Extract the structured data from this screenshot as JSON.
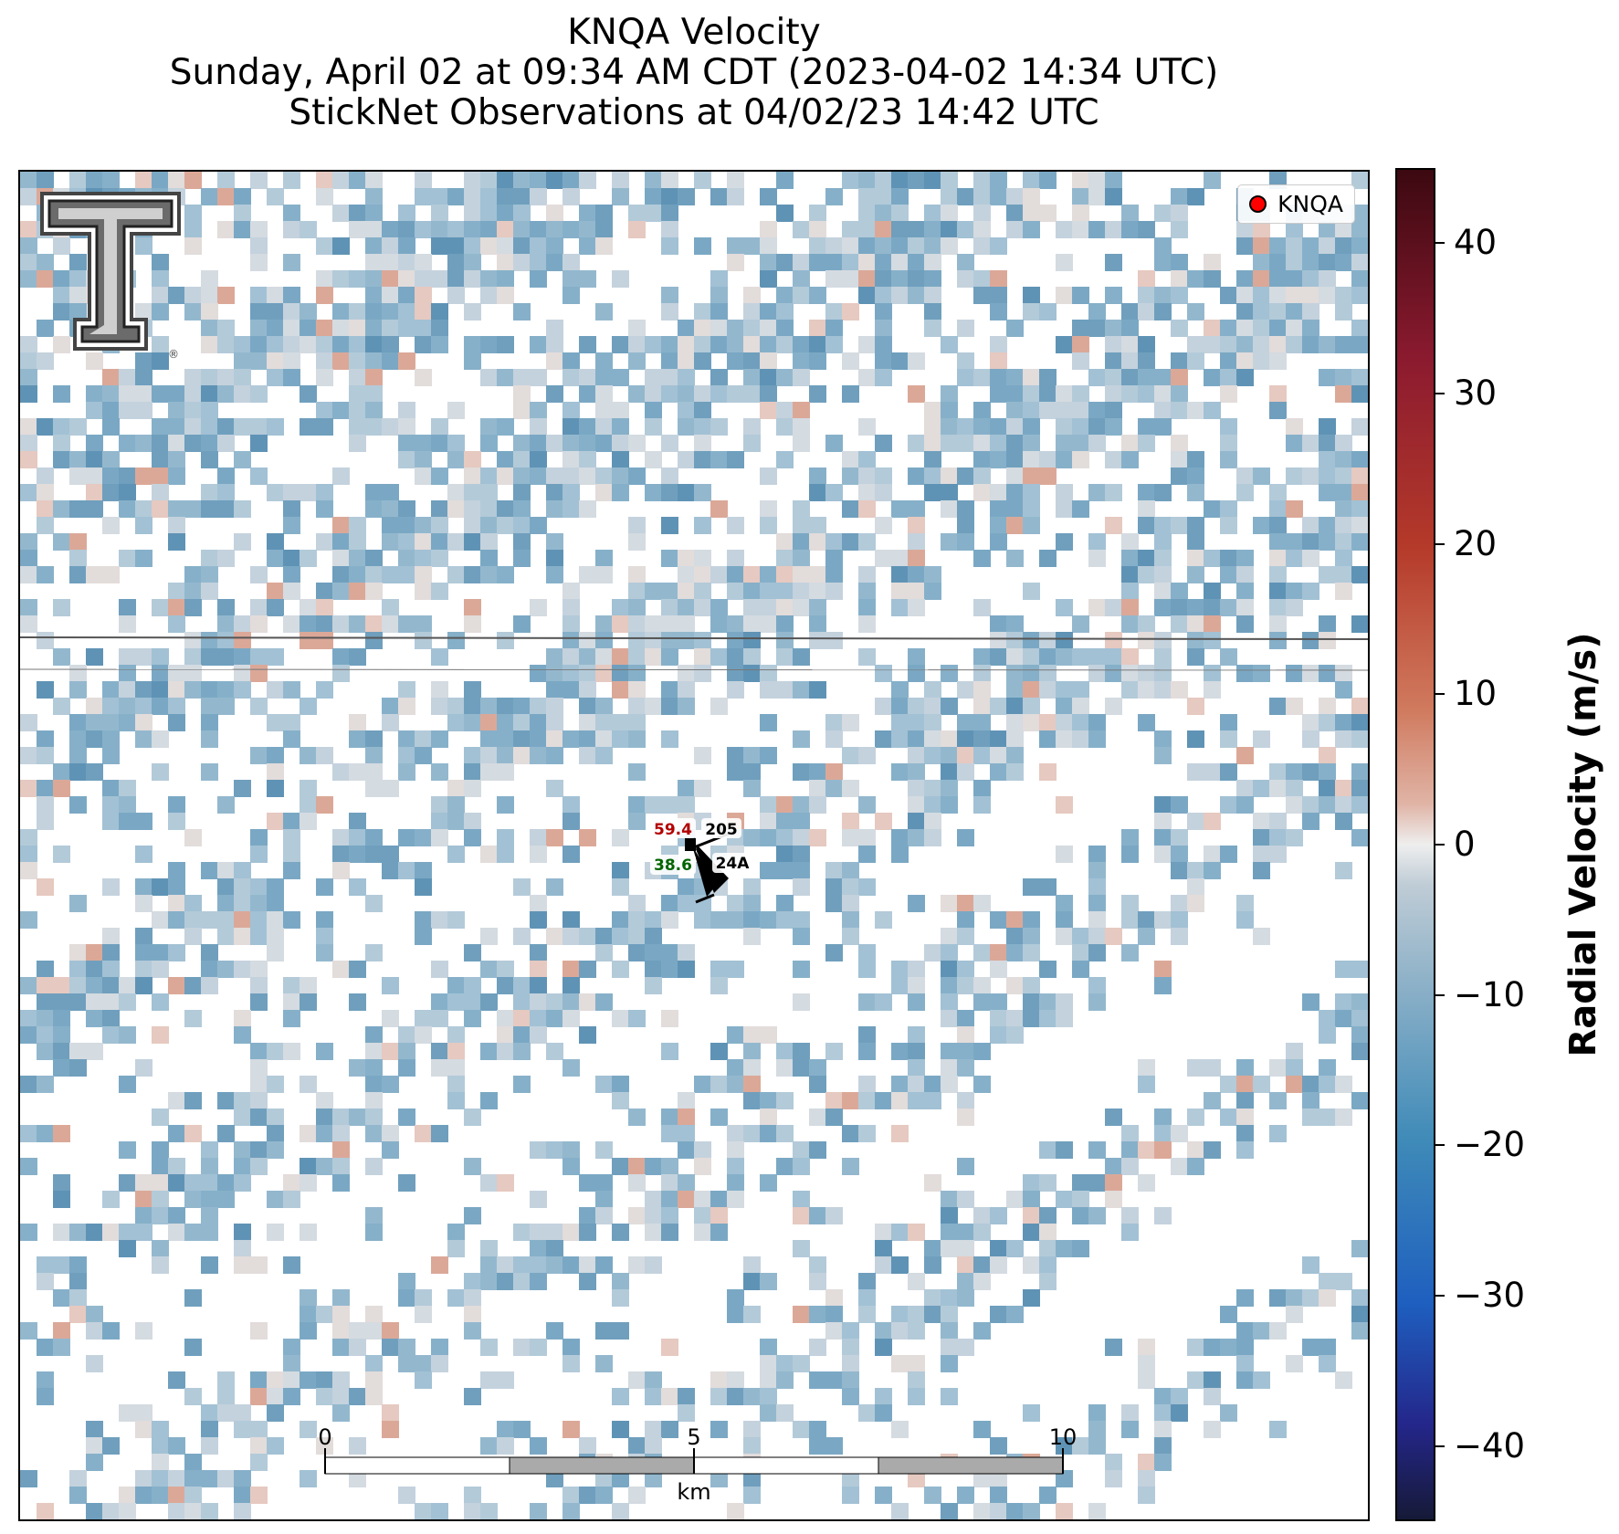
{
  "title": {
    "line1": "KNQA Velocity",
    "line2": "Sunday, April 02 at 09:34 AM CDT (2023-04-02 14:34 UTC)",
    "line3": "StickNet Observations at 04/02/23 14:42 UTC"
  },
  "legend": {
    "label": "KNQA",
    "marker_color": "#ff0000"
  },
  "logo": {
    "name": "Texas Tech Double T",
    "registered_mark": "®"
  },
  "station": {
    "id": "0205",
    "line2": "0224A",
    "id_display": "205",
    "line2_display": "24A",
    "temperature": "59.4",
    "dewpoint": "38.6",
    "temperature_color": "#b30000",
    "dewpoint_color": "#006400"
  },
  "colorbar": {
    "label": "Radial Velocity (m/s)",
    "vmin": -45,
    "vmax": 45,
    "ticks": [
      40,
      30,
      20,
      10,
      0,
      -10,
      -20,
      -30,
      -40
    ],
    "tick_labels": [
      "40",
      "30",
      "20",
      "10",
      "0",
      "−10",
      "−20",
      "−30",
      "−40"
    ],
    "colormap": "balance"
  },
  "scale_bar": {
    "unit": "km",
    "labels": [
      "0",
      "5",
      "10"
    ]
  },
  "colors": {
    "field_main": "#7faac4",
    "field_light": "#c9d5de",
    "field_warm": "#e3b5a5",
    "road_line": "#555555"
  }
}
